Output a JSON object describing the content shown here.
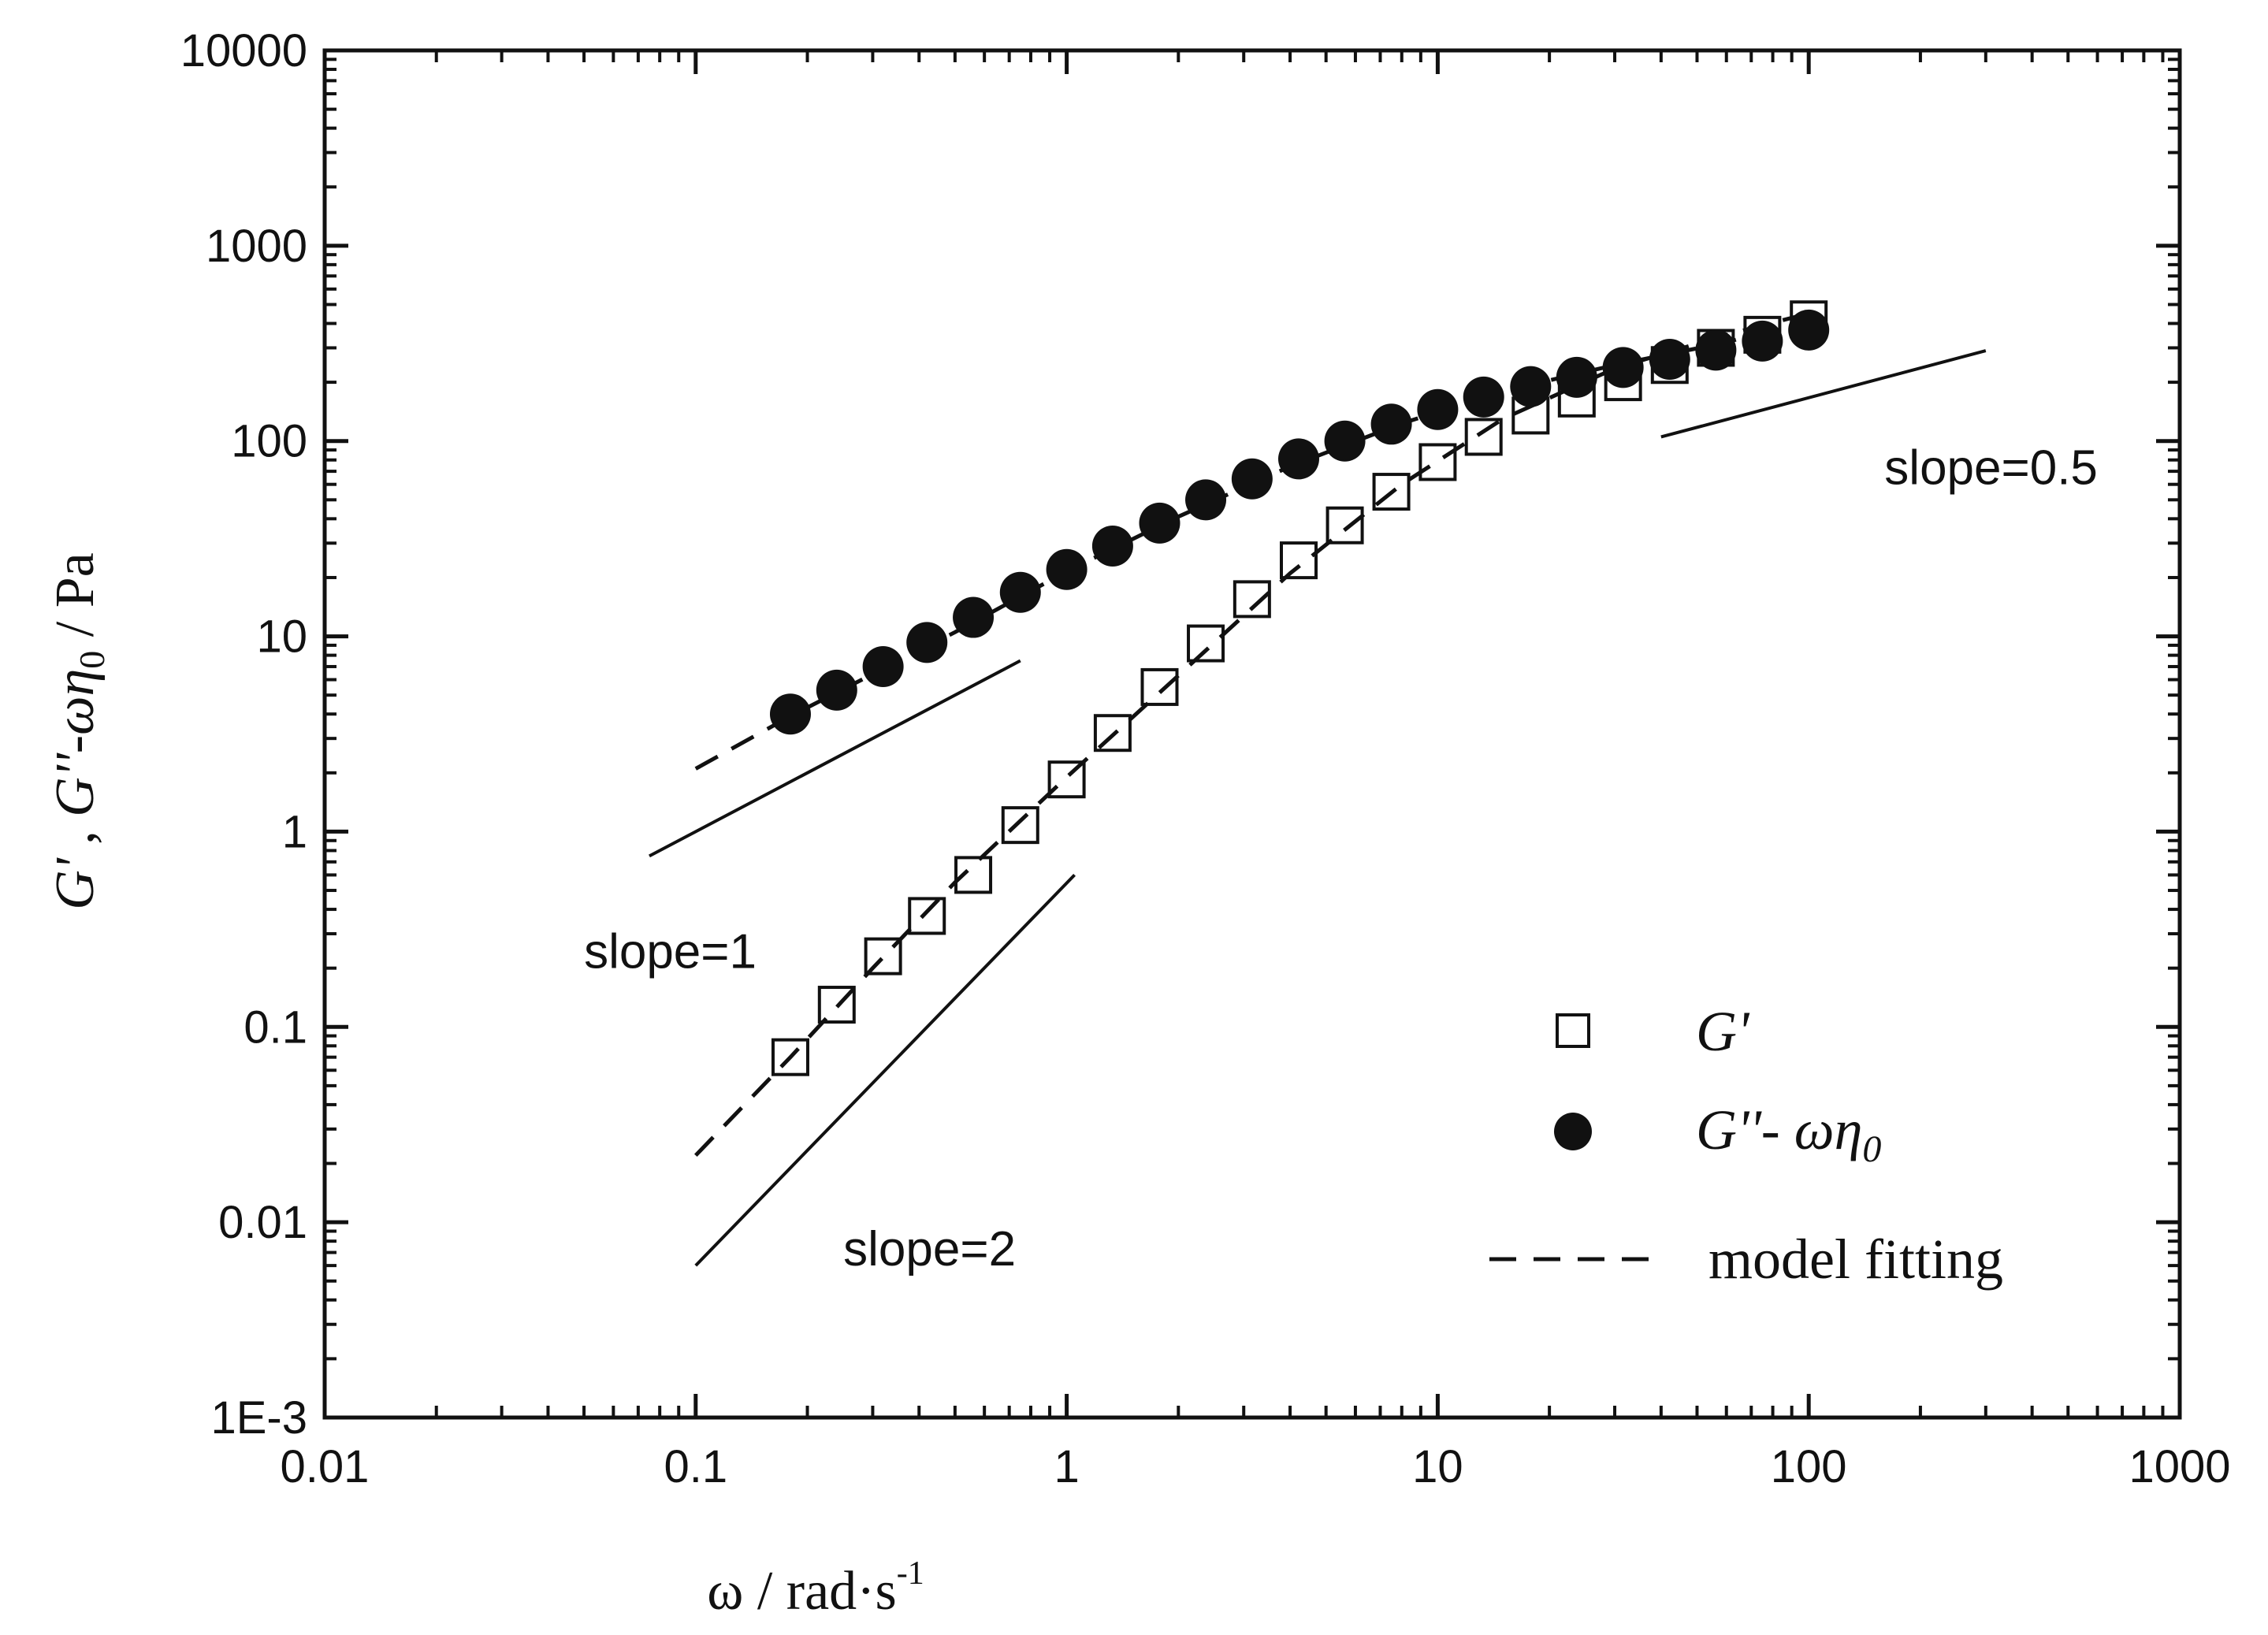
{
  "chart_data": {
    "type": "scatter",
    "x_scale": "log",
    "y_scale": "log",
    "xlim": [
      0.01,
      1000
    ],
    "ylim": [
      0.001,
      10000
    ],
    "x_ticks": [
      0.01,
      0.1,
      1,
      10,
      100,
      1000
    ],
    "x_tick_labels": [
      "0.01",
      "0.1",
      "1",
      "10",
      "100",
      "1000"
    ],
    "y_ticks": [
      0.001,
      0.01,
      0.1,
      1,
      10,
      100,
      1000,
      10000
    ],
    "y_tick_labels": [
      "1E-3",
      "0.01",
      "0.1",
      "1",
      "10",
      "100",
      "1000",
      "10000"
    ],
    "xlabel": "ω / rad·s",
    "xlabel_sup": "-1",
    "ylabel_parts": [
      "G'",
      " , ",
      "G''",
      "-",
      "ωη",
      "0",
      " / Pa"
    ],
    "grid": false,
    "legend_position": "bottom-right",
    "legend_items": [
      {
        "marker": "square-open",
        "label": "G'"
      },
      {
        "marker": "circle-filled",
        "label": "G''- ωη",
        "label_sub": "0"
      },
      {
        "marker": "dashed-line",
        "label": "model fitting"
      }
    ],
    "series": [
      {
        "name": "G'",
        "marker": "square-open",
        "x": [
          0.18,
          0.24,
          0.32,
          0.42,
          0.56,
          0.75,
          1.0,
          1.33,
          1.78,
          2.37,
          3.16,
          4.22,
          5.62,
          7.5,
          10,
          13.3,
          17.8,
          23.7,
          31.6,
          42.2,
          56.2,
          75,
          100
        ],
        "y": [
          0.07,
          0.13,
          0.23,
          0.37,
          0.6,
          1.08,
          1.85,
          3.2,
          5.5,
          9.2,
          15.5,
          24.5,
          37,
          55,
          78,
          105,
          135,
          165,
          200,
          245,
          300,
          350,
          420
        ]
      },
      {
        "name": "G''- ωη0",
        "marker": "circle-filled",
        "x": [
          0.18,
          0.24,
          0.32,
          0.42,
          0.56,
          0.75,
          1.0,
          1.33,
          1.78,
          2.37,
          3.16,
          4.22,
          5.62,
          7.5,
          10,
          13.3,
          17.8,
          23.7,
          31.6,
          42.2,
          56.2,
          75,
          100
        ],
        "y": [
          4.0,
          5.3,
          7.0,
          9.3,
          12.5,
          16.8,
          22,
          29,
          38,
          50,
          64,
          81,
          100,
          122,
          145,
          168,
          190,
          212,
          238,
          262,
          292,
          325,
          370
        ]
      },
      {
        "name": "model fitting G'",
        "style": "dashed",
        "x": [
          0.1,
          0.18,
          0.3,
          0.5,
          1.0,
          2.0,
          4.0,
          8.0,
          15,
          30,
          60,
          100
        ],
        "y": [
          0.022,
          0.07,
          0.2,
          0.55,
          1.9,
          6.3,
          21,
          60,
          130,
          235,
          350,
          450
        ]
      },
      {
        "name": "model fitting G''- ωη0",
        "style": "dashed",
        "x": [
          0.1,
          0.18,
          0.3,
          0.5,
          1.0,
          2.0,
          4.0,
          8.0,
          15,
          30,
          60,
          100
        ],
        "y": [
          2.1,
          3.9,
          6.4,
          10.5,
          21.5,
          41,
          74,
          123,
          180,
          245,
          320,
          420
        ]
      }
    ],
    "slope_lines": [
      {
        "label": "slope=1",
        "x": [
          0.075,
          0.75
        ],
        "y": [
          0.75,
          7.5
        ],
        "label_x": 0.05,
        "label_y": 0.2
      },
      {
        "label": "slope=2",
        "x": [
          0.1,
          1.05
        ],
        "y": [
          0.006,
          0.6
        ],
        "label_x": 0.25,
        "label_y": 0.006
      },
      {
        "label": "slope=0.5",
        "x": [
          40,
          300
        ],
        "y": [
          105,
          290
        ],
        "label_x": 160,
        "label_y": 60
      }
    ]
  }
}
